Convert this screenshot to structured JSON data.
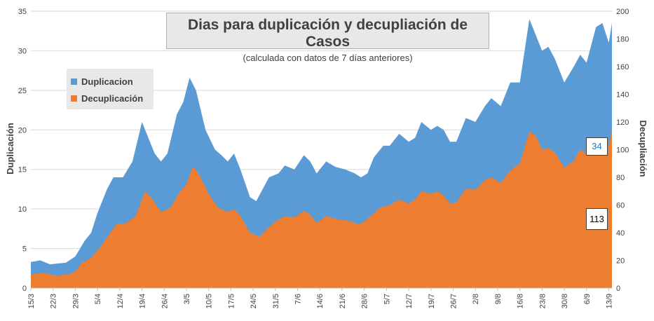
{
  "title": "Dias para duplicación y decupliación de Casos",
  "subtitle": "(calculada con datos de 7 días anteriores)",
  "legend": {
    "series1": "Duplicacion",
    "series2": "Decuplicación"
  },
  "colors": {
    "duplicacion": "#5b9bd5",
    "decuplicacion": "#ed7d31",
    "box": "#e8e8e8"
  },
  "labels": {
    "last_duplicacion": "34",
    "last_decuplicacion": "113"
  },
  "chart_data": {
    "type": "area",
    "title": "Dias para duplicación y decupliación de Casos",
    "subtitle": "(calculada con datos de 7 días anteriores)",
    "ylabel_left": "Duplicación",
    "ylabel_right": "Decupliación",
    "ylim_left": [
      0,
      35
    ],
    "ylim_right": [
      0,
      200
    ],
    "yticks_left": [
      "0",
      "5",
      "10",
      "15",
      "20",
      "25",
      "30",
      "35"
    ],
    "yticks_right": [
      "0",
      "20",
      "40",
      "60",
      "80",
      "100",
      "120",
      "140",
      "160",
      "180",
      "200"
    ],
    "xtick_labels": [
      "15/3",
      "22/3",
      "29/3",
      "5/4",
      "12/4",
      "19/4",
      "26/4",
      "3/5",
      "10/5",
      "17/5",
      "24/5",
      "31/5",
      "7/6",
      "14/6",
      "21/6",
      "28/6",
      "5/7",
      "12/7",
      "19/7",
      "26/7",
      "2/8",
      "9/8",
      "16/8",
      "23/8",
      "30/8",
      "6/9",
      "13/9"
    ],
    "x_start": "15/3",
    "x_end": "14/9",
    "legend_position": "left",
    "series": [
      {
        "name": "Duplicacion",
        "axis": "left",
        "key_points": [
          [
            "15/3",
            3.3
          ],
          [
            "18/3",
            3.5
          ],
          [
            "21/3",
            3.0
          ],
          [
            "26/3",
            3.2
          ],
          [
            "29/3",
            4.0
          ],
          [
            "1/4",
            6.0
          ],
          [
            "3/4",
            7.0
          ],
          [
            "5/4",
            9.5
          ],
          [
            "8/4",
            12.5
          ],
          [
            "10/4",
            14.0
          ],
          [
            "13/4",
            14.0
          ],
          [
            "16/4",
            16.0
          ],
          [
            "19/4",
            21.0
          ],
          [
            "21/4",
            19.0
          ],
          [
            "23/4",
            17.0
          ],
          [
            "25/4",
            16.0
          ],
          [
            "27/4",
            17.0
          ],
          [
            "30/4",
            22.0
          ],
          [
            "2/5",
            23.5
          ],
          [
            "4/5",
            26.6
          ],
          [
            "6/5",
            25.0
          ],
          [
            "9/5",
            20.0
          ],
          [
            "12/5",
            17.5
          ],
          [
            "14/5",
            16.8
          ],
          [
            "16/5",
            16.0
          ],
          [
            "18/5",
            17.0
          ],
          [
            "20/5",
            15.0
          ],
          [
            "23/5",
            11.5
          ],
          [
            "25/5",
            11.0
          ],
          [
            "27/5",
            12.5
          ],
          [
            "29/5",
            14.0
          ],
          [
            "1/6",
            14.5
          ],
          [
            "3/6",
            15.5
          ],
          [
            "6/6",
            15.0
          ],
          [
            "9/6",
            16.8
          ],
          [
            "11/6",
            16.0
          ],
          [
            "13/6",
            14.5
          ],
          [
            "16/6",
            16.0
          ],
          [
            "19/6",
            15.3
          ],
          [
            "22/6",
            15.0
          ],
          [
            "25/6",
            14.5
          ],
          [
            "27/6",
            14.0
          ],
          [
            "29/6",
            14.5
          ],
          [
            "1/7",
            16.5
          ],
          [
            "4/7",
            18.0
          ],
          [
            "6/7",
            18.0
          ],
          [
            "9/7",
            19.5
          ],
          [
            "12/7",
            18.5
          ],
          [
            "14/7",
            19.0
          ],
          [
            "16/7",
            21.0
          ],
          [
            "19/7",
            20.0
          ],
          [
            "21/7",
            20.5
          ],
          [
            "23/7",
            20.0
          ],
          [
            "25/7",
            18.5
          ],
          [
            "27/7",
            18.5
          ],
          [
            "30/7",
            21.5
          ],
          [
            "2/8",
            21.0
          ],
          [
            "5/8",
            23.0
          ],
          [
            "7/8",
            24.0
          ],
          [
            "10/8",
            23.0
          ],
          [
            "13/8",
            26.0
          ],
          [
            "16/8",
            26.0
          ],
          [
            "19/8",
            34.0
          ],
          [
            "21/8",
            32.0
          ],
          [
            "23/8",
            30.0
          ],
          [
            "25/8",
            30.5
          ],
          [
            "27/8",
            29.0
          ],
          [
            "30/8",
            26.0
          ],
          [
            "2/9",
            28.0
          ],
          [
            "4/9",
            29.5
          ],
          [
            "6/9",
            28.5
          ],
          [
            "9/9",
            33.0
          ],
          [
            "11/9",
            33.5
          ],
          [
            "13/9",
            31.0
          ],
          [
            "14/9",
            33.5
          ]
        ]
      },
      {
        "name": "Decuplicación",
        "axis": "right",
        "key_points": [
          [
            "15/3",
            10
          ],
          [
            "19/3",
            11
          ],
          [
            "23/3",
            9
          ],
          [
            "27/3",
            10
          ],
          [
            "29/3",
            12
          ],
          [
            "31/3",
            18
          ],
          [
            "3/4",
            22
          ],
          [
            "6/4",
            30
          ],
          [
            "9/4",
            40
          ],
          [
            "11/4",
            46
          ],
          [
            "14/4",
            47
          ],
          [
            "17/4",
            52
          ],
          [
            "20/4",
            70
          ],
          [
            "22/4",
            65
          ],
          [
            "25/4",
            55
          ],
          [
            "28/4",
            58
          ],
          [
            "1/5",
            70
          ],
          [
            "3/5",
            75
          ],
          [
            "5/5",
            88
          ],
          [
            "7/5",
            82
          ],
          [
            "10/5",
            68
          ],
          [
            "13/5",
            58
          ],
          [
            "16/5",
            55
          ],
          [
            "18/5",
            57
          ],
          [
            "20/5",
            52
          ],
          [
            "23/5",
            40
          ],
          [
            "26/5",
            37
          ],
          [
            "28/5",
            42
          ],
          [
            "31/5",
            48
          ],
          [
            "3/6",
            52
          ],
          [
            "6/6",
            51
          ],
          [
            "9/6",
            56
          ],
          [
            "11/6",
            53
          ],
          [
            "13/6",
            47
          ],
          [
            "16/6",
            52
          ],
          [
            "19/6",
            50
          ],
          [
            "22/6",
            49
          ],
          [
            "24/6",
            48
          ],
          [
            "26/6",
            46
          ],
          [
            "28/6",
            48
          ],
          [
            "30/6",
            52
          ],
          [
            "3/7",
            58
          ],
          [
            "6/7",
            60
          ],
          [
            "9/7",
            64
          ],
          [
            "12/7",
            61
          ],
          [
            "14/7",
            64
          ],
          [
            "16/7",
            70
          ],
          [
            "19/7",
            68
          ],
          [
            "21/7",
            70
          ],
          [
            "23/7",
            67
          ],
          [
            "25/7",
            61
          ],
          [
            "27/7",
            62
          ],
          [
            "30/7",
            72
          ],
          [
            "2/8",
            71
          ],
          [
            "5/8",
            78
          ],
          [
            "7/8",
            80
          ],
          [
            "10/8",
            76
          ],
          [
            "13/8",
            85
          ],
          [
            "16/8",
            90
          ],
          [
            "19/8",
            113
          ],
          [
            "21/8",
            110
          ],
          [
            "23/8",
            100
          ],
          [
            "25/8",
            101
          ],
          [
            "27/8",
            98
          ],
          [
            "30/8",
            87
          ],
          [
            "2/9",
            92
          ],
          [
            "4/9",
            100
          ],
          [
            "6/9",
            97
          ],
          [
            "9/9",
            107
          ],
          [
            "11/9",
            108
          ],
          [
            "13/9",
            103
          ],
          [
            "14/9",
            113
          ]
        ]
      }
    ]
  }
}
